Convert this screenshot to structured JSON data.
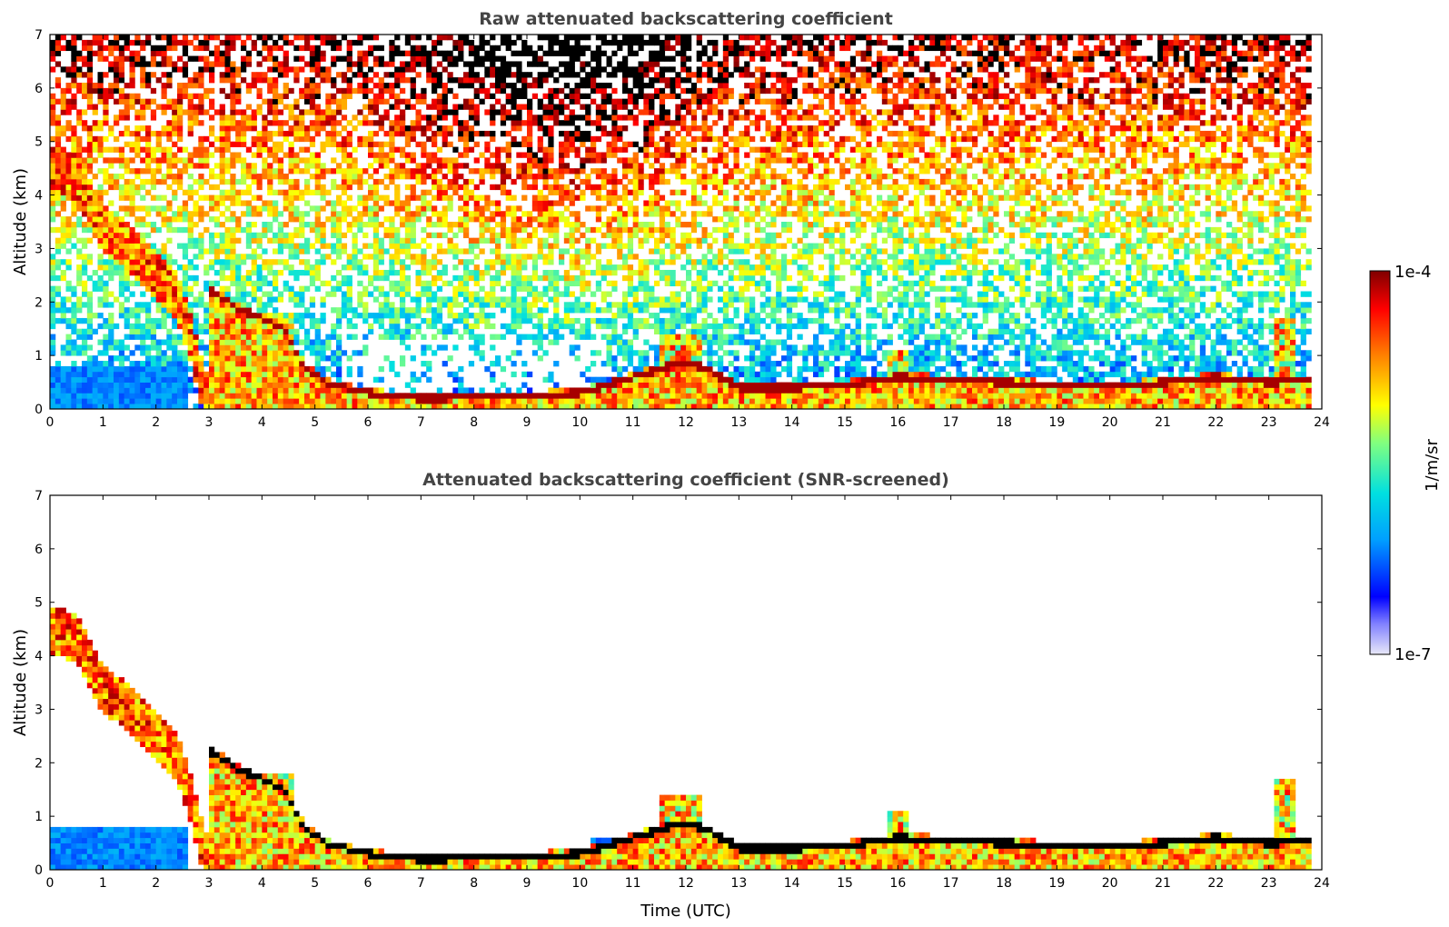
{
  "chart_data": [
    {
      "type": "heatmap",
      "title": "Raw attenuated backscattering coefficient",
      "ylabel": "Altitude (km)",
      "xlabel": "",
      "xlim": [
        0,
        24
      ],
      "ylim": [
        0,
        7
      ],
      "xticks": [
        "0",
        "1",
        "2",
        "3",
        "4",
        "5",
        "6",
        "7",
        "8",
        "9",
        "10",
        "11",
        "12",
        "13",
        "14",
        "15",
        "16",
        "17",
        "18",
        "19",
        "20",
        "21",
        "22",
        "23",
        "24"
      ],
      "yticks": [
        "0",
        "1",
        "2",
        "3",
        "4",
        "5",
        "6",
        "7"
      ],
      "grid": false,
      "screened": false,
      "features": {
        "descending_layer_km": [
          [
            0.0,
            4.5
          ],
          [
            0.5,
            4.3
          ],
          [
            1.0,
            3.4
          ],
          [
            1.5,
            3.0
          ],
          [
            2.0,
            2.5
          ],
          [
            2.4,
            2.1
          ],
          [
            2.7,
            1.2
          ],
          [
            2.9,
            0.3
          ]
        ],
        "boundary_layer_top_km": [
          [
            3.1,
            2.2
          ],
          [
            3.5,
            1.9
          ],
          [
            4.0,
            1.7
          ],
          [
            4.4,
            1.5
          ],
          [
            4.8,
            0.8
          ],
          [
            5.2,
            0.5
          ],
          [
            6.0,
            0.3
          ],
          [
            7.0,
            0.2
          ],
          [
            8.0,
            0.22
          ],
          [
            9.0,
            0.25
          ],
          [
            10.0,
            0.3
          ],
          [
            11.0,
            0.6
          ],
          [
            12.0,
            0.9
          ],
          [
            12.5,
            0.7
          ],
          [
            13.0,
            0.4
          ],
          [
            14.0,
            0.4
          ],
          [
            15.0,
            0.45
          ],
          [
            16.0,
            0.6
          ],
          [
            17.0,
            0.55
          ],
          [
            18.0,
            0.5
          ],
          [
            19.0,
            0.45
          ],
          [
            20.0,
            0.42
          ],
          [
            21.0,
            0.5
          ],
          [
            22.0,
            0.6
          ],
          [
            23.0,
            0.5
          ],
          [
            23.8,
            0.55
          ]
        ]
      }
    },
    {
      "type": "heatmap",
      "title": "Attenuated backscattering coefficient (SNR-screened)",
      "ylabel": "Altitude (km)",
      "xlabel": "Time (UTC)",
      "xlim": [
        0,
        24
      ],
      "ylim": [
        0,
        7
      ],
      "xticks": [
        "0",
        "1",
        "2",
        "3",
        "4",
        "5",
        "6",
        "7",
        "8",
        "9",
        "10",
        "11",
        "12",
        "13",
        "14",
        "15",
        "16",
        "17",
        "18",
        "19",
        "20",
        "21",
        "22",
        "23",
        "24"
      ],
      "yticks": [
        "0",
        "1",
        "2",
        "3",
        "4",
        "5",
        "6",
        "7"
      ],
      "grid": false,
      "screened": true
    }
  ],
  "colorbar": {
    "label": "1/m/sr",
    "max_label": "1e-4",
    "min_label": "1e-7",
    "scale": "log",
    "colormap": [
      "#e8e8f8",
      "#0000ff",
      "#00a0ff",
      "#00e0e0",
      "#80ff80",
      "#ffff00",
      "#ff8000",
      "#ff0000",
      "#800000"
    ]
  }
}
